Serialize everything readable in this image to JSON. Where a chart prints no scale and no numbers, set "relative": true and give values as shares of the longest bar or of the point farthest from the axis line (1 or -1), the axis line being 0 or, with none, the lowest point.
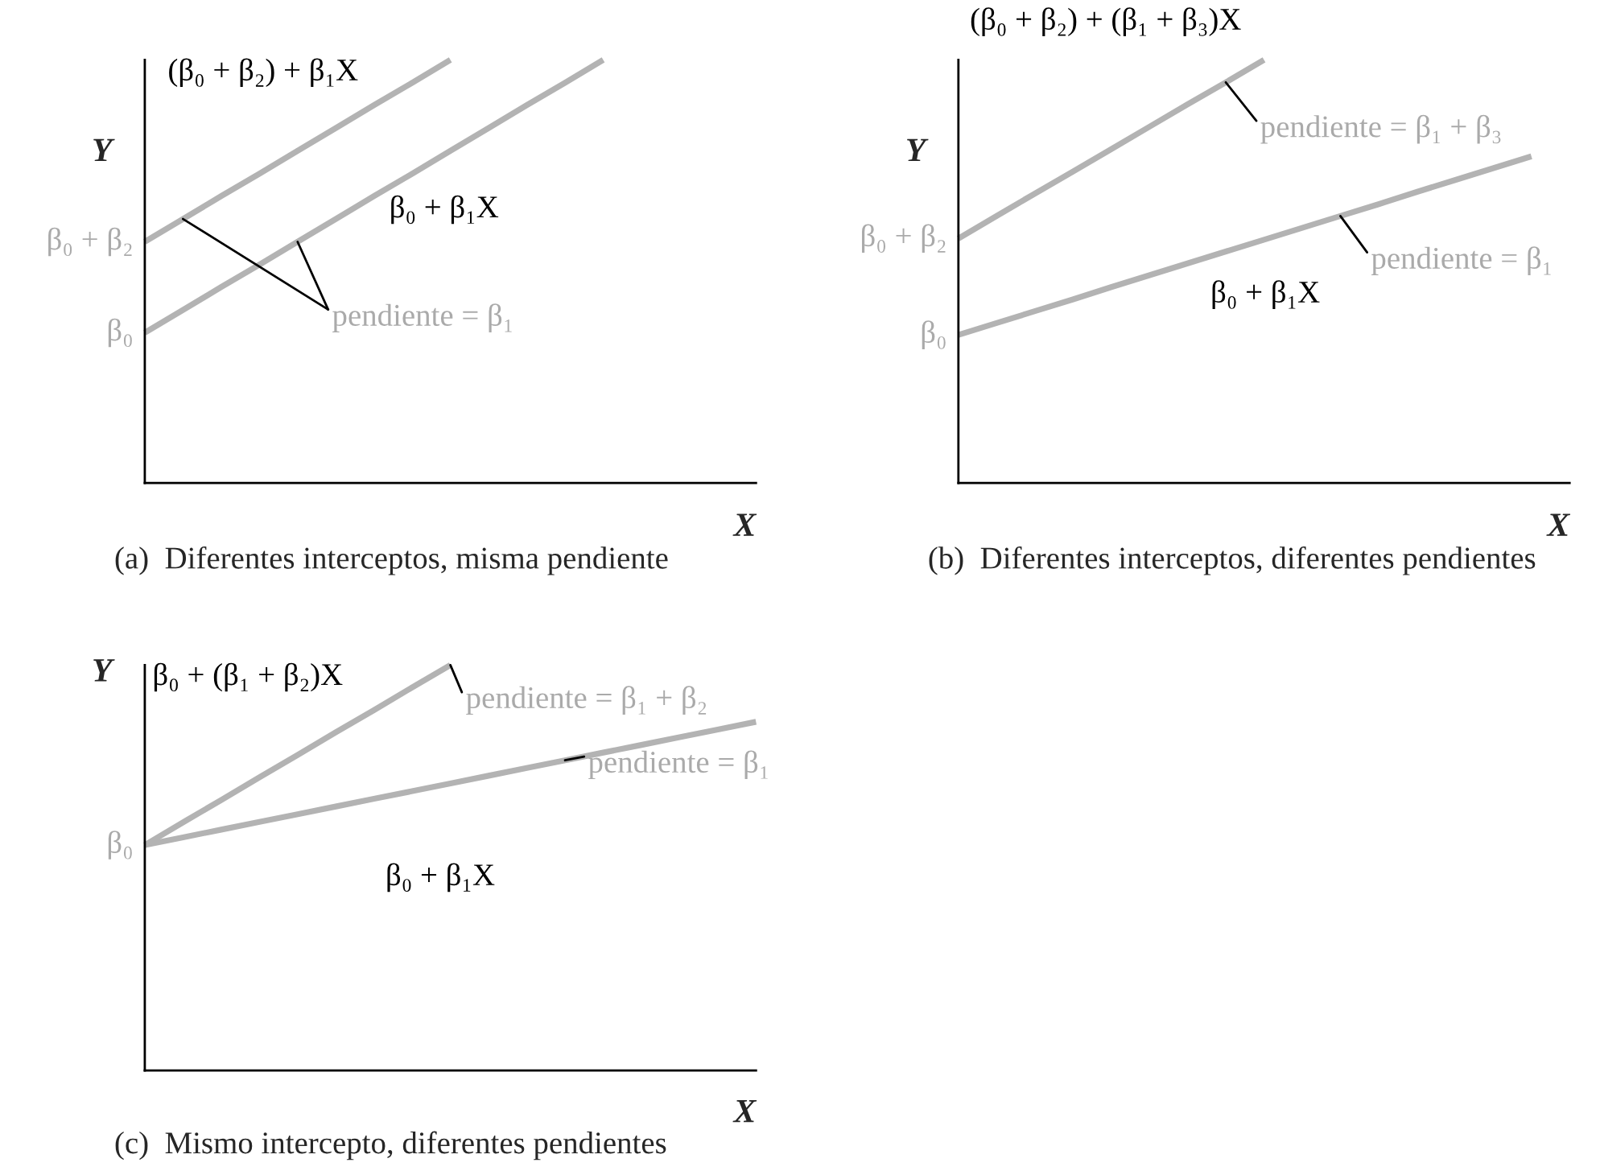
{
  "chart_data": [
    {
      "type": "line",
      "relative": true,
      "title": "(a)  Diferentes interceptos, misma pendiente",
      "xlabel": "X",
      "ylabel": "Y",
      "categories": [
        null,
        null,
        null,
        null,
        null,
        null,
        null,
        null,
        null,
        null,
        null,
        null,
        null,
        null,
        null,
        null,
        null
      ],
      "series": [
        {
          "name": "(β₀ + β₂) + β₁X",
          "color": "#b3b3b3",
          "values": [
            0.57,
            0.624,
            0.678,
            0.731,
            0.785,
            0.839,
            0.893,
            0.946,
            1.0,
            null,
            null,
            null,
            null,
            null,
            null,
            null,
            null
          ]
        },
        {
          "name": "β₀ + β₁X",
          "color": "#b3b3b3",
          "values": [
            0.355,
            0.409,
            0.463,
            0.516,
            0.57,
            0.624,
            0.678,
            0.731,
            0.785,
            0.839,
            0.893,
            0.946,
            1.0,
            null,
            null,
            null,
            null
          ]
        }
      ],
      "annotations": [
        "β₀ + β₂",
        "β₀",
        "pendiente = β₁"
      ]
    },
    {
      "type": "line",
      "relative": true,
      "title": "(b)  Diferentes interceptos, diferentes pendientes",
      "xlabel": "X",
      "ylabel": "Y",
      "categories": [
        null,
        null,
        null,
        null,
        null,
        null,
        null,
        null,
        null,
        null,
        null,
        null,
        null,
        null,
        null,
        null,
        null
      ],
      "series": [
        {
          "name": "(β₀ + β₂) + (β₁ + β₃)X",
          "color": "#b3b3b3",
          "values": [
            0.578,
            0.631,
            0.684,
            0.736,
            0.789,
            0.842,
            0.895,
            0.947,
            1.0,
            null,
            null,
            null,
            null,
            null,
            null,
            null,
            null
          ]
        },
        {
          "name": "β₀ + β₁X",
          "color": "#b3b3b3",
          "values": [
            0.35,
            0.378,
            0.406,
            0.434,
            0.463,
            0.491,
            0.519,
            0.547,
            0.575,
            0.603,
            0.631,
            0.659,
            0.688,
            0.716,
            0.744,
            0.772,
            null
          ]
        }
      ],
      "annotations": [
        "β₀ + β₂",
        "β₀",
        "pendiente = β₁ + β₃",
        "pendiente = β₁"
      ]
    },
    {
      "type": "line",
      "relative": true,
      "title": "(c)  Mismo intercepto, diferentes pendientes",
      "xlabel": "X",
      "ylabel": "Y",
      "categories": [
        null,
        null,
        null,
        null,
        null,
        null,
        null,
        null,
        null,
        null,
        null,
        null,
        null,
        null,
        null,
        null,
        null
      ],
      "series": [
        {
          "name": "β₀ + (β₁ + β₂)X",
          "color": "#b3b3b3",
          "values": [
            0.556,
            0.612,
            0.667,
            0.723,
            0.778,
            0.834,
            0.889,
            0.945,
            1.0,
            null,
            null,
            null,
            null,
            null,
            null,
            null,
            null
          ]
        },
        {
          "name": "β₀ + β₁X",
          "color": "#b3b3b3",
          "values": [
            0.556,
            0.575,
            0.594,
            0.613,
            0.632,
            0.651,
            0.67,
            0.689,
            0.708,
            0.727,
            0.746,
            0.765,
            0.784,
            0.803,
            0.822,
            0.841,
            0.86
          ]
        }
      ],
      "annotations": [
        "β₀",
        "pendiente = β₁ + β₂",
        "pendiente = β₁"
      ]
    }
  ]
}
